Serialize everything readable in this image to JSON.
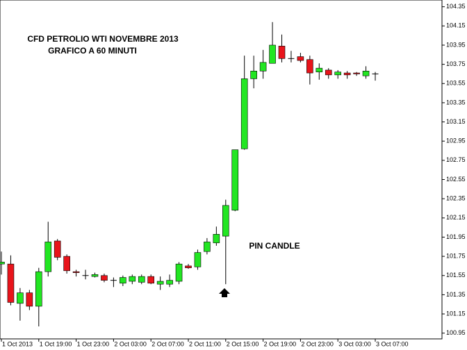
{
  "chart_data": {
    "type": "candlestick",
    "annotations": [
      "CFD PETROLIO WTI NOVEMBRE 2013",
      "GRAFICO A 60 MINUTI",
      "PIN CANDLE"
    ],
    "categories": [
      "1 Oct 2013",
      null,
      null,
      null,
      "1 Oct 19:00",
      null,
      null,
      null,
      "1 Oct 23:00",
      null,
      null,
      null,
      "2 Oct 03:00",
      null,
      null,
      null,
      "2 Oct 07:00",
      null,
      null,
      null,
      "2 Oct 11:00",
      null,
      null,
      null,
      "2 Oct 15:00",
      null,
      null,
      null,
      "2 Oct 19:00",
      null,
      null,
      null,
      "2 Oct 23:00",
      null,
      null,
      null,
      "3 Oct 03:00",
      null,
      null,
      null,
      "3 Oct 07:00"
    ],
    "open": [
      101.67,
      101.67,
      101.26,
      101.37,
      101.23,
      101.59,
      101.91,
      101.75,
      101.59,
      101.55,
      101.54,
      101.55,
      101.5,
      101.47,
      101.49,
      101.48,
      101.54,
      101.46,
      101.46,
      101.49,
      101.65,
      101.64,
      101.8,
      101.89,
      101.96,
      102.23,
      102.87,
      103.6,
      103.68,
      103.76,
      103.94,
      103.81,
      103.83,
      103.8,
      103.67,
      103.69,
      103.64,
      103.66,
      103.66,
      103.63,
      103.65
    ],
    "high": [
      101.8,
      101.76,
      101.42,
      101.4,
      101.63,
      102.11,
      101.93,
      101.77,
      101.61,
      101.61,
      101.58,
      101.57,
      101.53,
      101.55,
      101.56,
      101.56,
      101.56,
      101.54,
      101.56,
      101.69,
      101.67,
      101.82,
      101.94,
      102.06,
      102.34,
      102.86,
      103.84,
      103.84,
      103.9,
      104.19,
      104.06,
      103.89,
      103.87,
      103.84,
      103.76,
      103.71,
      103.69,
      103.68,
      103.67,
      103.73,
      103.67
    ],
    "low": [
      101.56,
      101.24,
      101.08,
      101.19,
      101.02,
      101.54,
      101.71,
      101.57,
      101.54,
      101.51,
      101.53,
      101.48,
      101.43,
      101.44,
      101.46,
      101.46,
      101.46,
      101.4,
      101.43,
      101.46,
      101.62,
      101.61,
      101.77,
      101.86,
      101.46,
      102.22,
      102.86,
      103.5,
      103.6,
      103.76,
      103.77,
      103.77,
      103.77,
      103.54,
      103.59,
      103.6,
      103.6,
      103.6,
      103.63,
      103.6,
      103.58
    ],
    "close": [
      101.69,
      101.27,
      101.37,
      101.23,
      101.59,
      101.9,
      101.74,
      101.6,
      101.58,
      101.55,
      101.56,
      101.5,
      101.5,
      101.53,
      101.54,
      101.54,
      101.47,
      101.49,
      101.5,
      101.67,
      101.63,
      101.79,
      101.9,
      101.98,
      102.28,
      102.86,
      103.6,
      103.68,
      103.77,
      103.95,
      103.81,
      103.81,
      103.79,
      103.66,
      103.71,
      103.64,
      103.67,
      103.64,
      103.65,
      103.68,
      103.65
    ],
    "up_color": "#22e622",
    "down_color": "#e8141b",
    "ylim": [
      100.89,
      104.42
    ],
    "yticks": [
      100.95,
      101.15,
      101.35,
      101.55,
      101.75,
      101.95,
      102.15,
      102.35,
      102.55,
      102.75,
      102.95,
      103.15,
      103.35,
      103.55,
      103.75,
      103.95,
      104.15,
      104.35
    ]
  }
}
